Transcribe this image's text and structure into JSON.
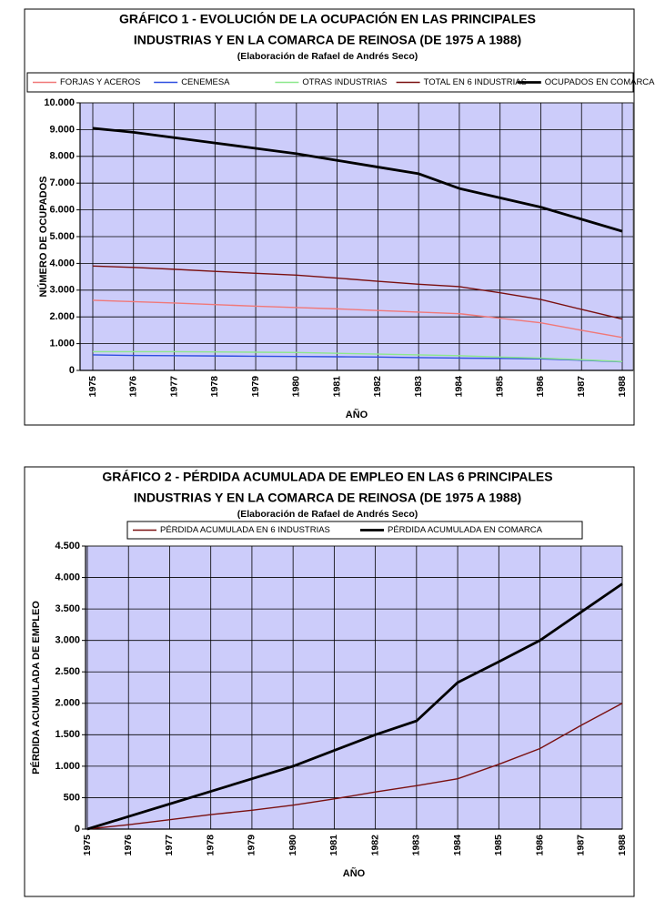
{
  "chart_data": [
    {
      "type": "line",
      "title": [
        "GRÁFICO 1 - EVOLUCIÓN DE LA OCUPACIÓN EN LAS PRINCIPALES",
        "INDUSTRIAS Y EN LA COMARCA DE REINOSA (DE 1975 A 1988)"
      ],
      "subtitle": "(Elaboración de Rafael de Andrés Seco)",
      "x_label": "AÑO",
      "y_label": "NÚMERO DE OCUPADOS",
      "categories": [
        "1975",
        "1976",
        "1977",
        "1978",
        "1979",
        "1980",
        "1981",
        "1982",
        "1983",
        "1984",
        "1985",
        "1986",
        "1987",
        "1988"
      ],
      "ylim": [
        0,
        10000
      ],
      "yticks": [
        0,
        {
          "value": 1000,
          "label": "1.000"
        },
        {
          "value": 2000,
          "label": "2.000"
        },
        {
          "value": 3000,
          "label": "3.000"
        },
        {
          "value": 4000,
          "label": "4.000"
        },
        {
          "value": 5000,
          "label": "5.000"
        },
        {
          "value": 6000,
          "label": "6.000"
        },
        {
          "value": 7000,
          "label": "7.000"
        },
        {
          "value": 8000,
          "label": "8.000"
        },
        {
          "value": 9000,
          "label": "9.000"
        },
        {
          "value": 10000,
          "label": "10.000"
        }
      ],
      "grid": true,
      "legend": "top",
      "series": [
        {
          "name": "FORJAS Y ACEROS",
          "color": "#f07878",
          "values": [
            2620,
            2570,
            2520,
            2460,
            2400,
            2350,
            2300,
            2240,
            2180,
            2120,
            1950,
            1780,
            1500,
            1230
          ]
        },
        {
          "name": "CENEMESA",
          "color": "#2f4fe0",
          "values": [
            580,
            560,
            550,
            540,
            530,
            520,
            510,
            500,
            480,
            460,
            450,
            430,
            380,
            320
          ]
        },
        {
          "name": "OTRAS INDUSTRIAS",
          "color": "#8ce88c",
          "values": [
            700,
            700,
            700,
            690,
            680,
            670,
            640,
            610,
            580,
            550,
            500,
            460,
            400,
            330
          ]
        },
        {
          "name": "TOTAL EN 6 INDUSTRIAS",
          "color": "#7a1010",
          "values": [
            3900,
            3850,
            3780,
            3700,
            3630,
            3560,
            3450,
            3330,
            3220,
            3130,
            2900,
            2650,
            2280,
            1920
          ]
        },
        {
          "name": "OCUPADOS EN COMARCA",
          "color": "#000000",
          "values": [
            9050,
            8900,
            8700,
            8500,
            8300,
            8100,
            7850,
            7600,
            7350,
            6800,
            6450,
            6100,
            5650,
            5200
          ]
        }
      ]
    },
    {
      "type": "line",
      "title": [
        "GRÁFICO 2 - PÉRDIDA ACUMULADA DE EMPLEO EN LAS 6 PRINCIPALES",
        "INDUSTRIAS Y EN LA COMARCA DE REINOSA (DE 1975 A 1988)"
      ],
      "subtitle": "(Elaboración de Rafael de Andrés Seco)",
      "x_label": "AÑO",
      "y_label": "PÉRDIDA ACUMULADA DE EMPLEO",
      "categories": [
        "1975",
        "1976",
        "1977",
        "1978",
        "1979",
        "1980",
        "1981",
        "1982",
        "1983",
        "1984",
        "1985",
        "1986",
        "1987",
        "1988"
      ],
      "ylim": [
        0,
        4500
      ],
      "yticks": [
        0,
        500,
        {
          "value": 1000,
          "label": "1.000"
        },
        {
          "value": 1500,
          "label": "1.500"
        },
        {
          "value": 2000,
          "label": "2.000"
        },
        {
          "value": 2500,
          "label": "2.500"
        },
        {
          "value": 3000,
          "label": "3.000"
        },
        {
          "value": 3500,
          "label": "3.500"
        },
        {
          "value": 4000,
          "label": "4.000"
        },
        {
          "value": 4500,
          "label": "4.500"
        }
      ],
      "grid": true,
      "legend": "top",
      "series": [
        {
          "name": "PÉRDIDA ACUMULADA EN 6 INDUSTRIAS",
          "color": "#7a1010",
          "values": [
            0,
            70,
            150,
            230,
            300,
            380,
            480,
            590,
            690,
            800,
            1030,
            1280,
            1650,
            2000
          ]
        },
        {
          "name": "PÉRDIDA ACUMULADA EN COMARCA",
          "color": "#000000",
          "values": [
            0,
            200,
            400,
            600,
            800,
            1000,
            1250,
            1500,
            1720,
            2330,
            2660,
            3000,
            3450,
            3900
          ]
        }
      ]
    }
  ]
}
